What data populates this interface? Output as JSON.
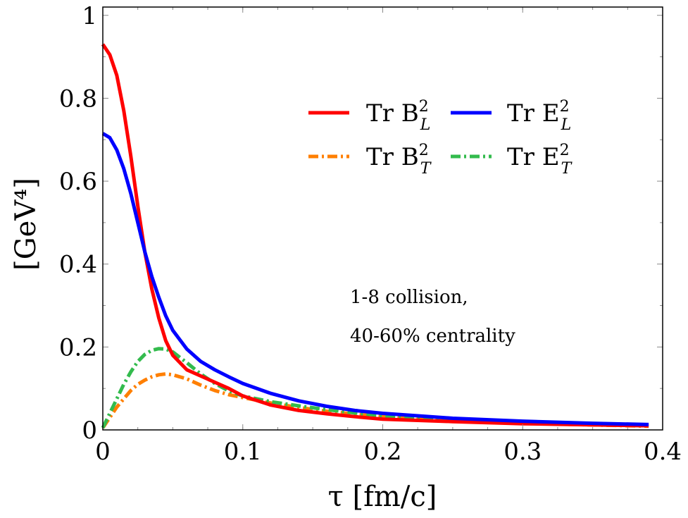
{
  "chart_data": {
    "type": "line",
    "xlabel": "τ [fm/c]",
    "ylabel": "[GeV⁴]",
    "xlim": [
      0,
      0.4
    ],
    "ylim": [
      0,
      1.02
    ],
    "xticks": [
      0,
      0.1,
      0.2,
      0.3,
      0.4
    ],
    "xtick_labels": [
      "0",
      "0.1",
      "0.2",
      "0.3",
      "0.4"
    ],
    "yticks": [
      0,
      0.2,
      0.4,
      0.6,
      0.8,
      1.0
    ],
    "ytick_labels": [
      "0",
      "0.2",
      "0.4",
      "0.6",
      "0.8",
      "1"
    ],
    "grid": false,
    "legend_position": "top-right",
    "annotation": [
      "1-8 collision,",
      "40-60% centrality"
    ],
    "series": [
      {
        "name": "Tr B_L^2",
        "legend_main": "Tr B",
        "legend_sub": "L",
        "legend_sup": "2",
        "color": "#ff0000",
        "style": "solid",
        "x": [
          0,
          0.005,
          0.01,
          0.015,
          0.02,
          0.025,
          0.03,
          0.035,
          0.04,
          0.045,
          0.05,
          0.06,
          0.07,
          0.08,
          0.09,
          0.1,
          0.12,
          0.14,
          0.16,
          0.18,
          0.2,
          0.25,
          0.3,
          0.35,
          0.39
        ],
        "y": [
          0.93,
          0.905,
          0.855,
          0.77,
          0.66,
          0.54,
          0.43,
          0.34,
          0.27,
          0.215,
          0.18,
          0.145,
          0.13,
          0.115,
          0.1,
          0.082,
          0.06,
          0.047,
          0.039,
          0.032,
          0.026,
          0.02,
          0.015,
          0.012,
          0.01
        ]
      },
      {
        "name": "Tr E_L^2",
        "legend_main": "Tr E",
        "legend_sub": "L",
        "legend_sup": "2",
        "color": "#0000ff",
        "style": "solid",
        "x": [
          0,
          0.005,
          0.01,
          0.015,
          0.02,
          0.025,
          0.03,
          0.035,
          0.04,
          0.045,
          0.05,
          0.06,
          0.07,
          0.08,
          0.09,
          0.1,
          0.12,
          0.14,
          0.16,
          0.18,
          0.2,
          0.25,
          0.3,
          0.35,
          0.39
        ],
        "y": [
          0.715,
          0.705,
          0.675,
          0.63,
          0.57,
          0.5,
          0.43,
          0.37,
          0.32,
          0.275,
          0.24,
          0.195,
          0.165,
          0.145,
          0.128,
          0.112,
          0.088,
          0.07,
          0.057,
          0.047,
          0.04,
          0.028,
          0.021,
          0.016,
          0.013
        ]
      },
      {
        "name": "Tr B_T^2",
        "legend_main": "Tr B",
        "legend_sub": "T",
        "legend_sup": "2",
        "color": "#ff7f00",
        "style": "dashdot",
        "x": [
          0,
          0.005,
          0.01,
          0.015,
          0.02,
          0.025,
          0.03,
          0.035,
          0.04,
          0.045,
          0.05,
          0.06,
          0.07,
          0.08,
          0.09,
          0.1,
          0.12,
          0.14,
          0.16,
          0.18,
          0.2,
          0.25,
          0.3,
          0.35,
          0.39
        ],
        "y": [
          0.005,
          0.03,
          0.055,
          0.075,
          0.095,
          0.11,
          0.12,
          0.128,
          0.133,
          0.135,
          0.133,
          0.123,
          0.108,
          0.095,
          0.085,
          0.078,
          0.065,
          0.054,
          0.045,
          0.038,
          0.032,
          0.022,
          0.016,
          0.012,
          0.009
        ]
      },
      {
        "name": "Tr E_T^2",
        "legend_main": "Tr E",
        "legend_sub": "T",
        "legend_sup": "2",
        "color": "#33bb4d",
        "style": "dashdot",
        "x": [
          0,
          0.005,
          0.01,
          0.015,
          0.02,
          0.025,
          0.03,
          0.035,
          0.04,
          0.045,
          0.05,
          0.06,
          0.07,
          0.08,
          0.09,
          0.1,
          0.12,
          0.14,
          0.16,
          0.18,
          0.2,
          0.25,
          0.3,
          0.35,
          0.39
        ],
        "y": [
          0.005,
          0.04,
          0.075,
          0.11,
          0.14,
          0.165,
          0.182,
          0.192,
          0.196,
          0.195,
          0.188,
          0.162,
          0.135,
          0.112,
          0.094,
          0.082,
          0.068,
          0.058,
          0.049,
          0.041,
          0.034,
          0.024,
          0.018,
          0.013,
          0.01
        ]
      }
    ]
  }
}
